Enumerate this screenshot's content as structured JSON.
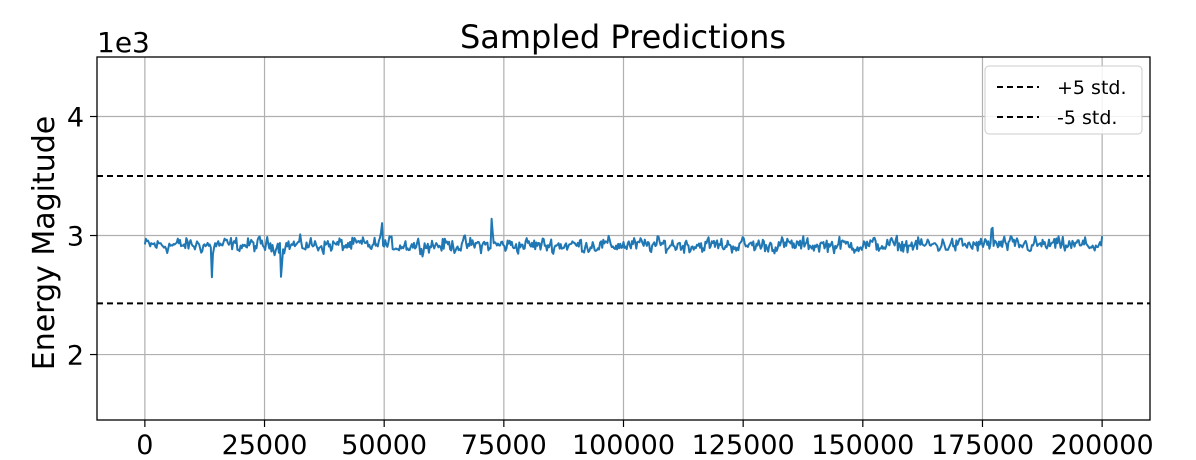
{
  "chart_data": {
    "type": "line",
    "title": "Sampled Predictions",
    "xlabel": "",
    "ylabel": "Energy Magitude",
    "y_offset_text": "1e3",
    "xlim": [
      -10000,
      210000
    ],
    "ylim": [
      1450,
      4500
    ],
    "x_ticks": [
      0,
      25000,
      50000,
      75000,
      100000,
      125000,
      150000,
      175000,
      200000
    ],
    "x_tick_labels": [
      "0",
      "25000",
      "50000",
      "75000",
      "100000",
      "125000",
      "150000",
      "175000",
      "200000"
    ],
    "y_ticks": [
      2000,
      3000,
      4000
    ],
    "y_tick_labels": [
      "2",
      "3",
      "4"
    ],
    "grid": true,
    "legend_position": "top-right",
    "reference_lines": [
      {
        "label": "+5 std.",
        "y": 3500,
        "style": "dashed",
        "color": "#000000"
      },
      {
        "label": "-5 std.",
        "y": 2430,
        "style": "dashed",
        "color": "#000000"
      }
    ],
    "series": [
      {
        "color": "#1f77b4",
        "x_start": 0,
        "x_end": 200000,
        "mean": 2920,
        "spread": 80,
        "notable_points": [
          {
            "x": 14000,
            "y": 2650
          },
          {
            "x": 28500,
            "y": 2590
          },
          {
            "x": 49500,
            "y": 3170
          },
          {
            "x": 72500,
            "y": 3190
          },
          {
            "x": 177000,
            "y": 3170
          }
        ]
      }
    ]
  }
}
